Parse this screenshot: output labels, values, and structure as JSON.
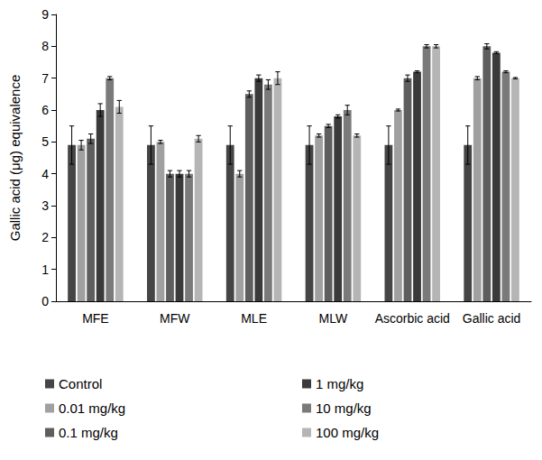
{
  "chart_data": {
    "type": "bar",
    "y_label": "Gallic acid (μg) equivalence",
    "categories": [
      "MFE",
      "MFW",
      "MLE",
      "MLW",
      "Ascorbic acid",
      "Gallic acid"
    ],
    "series": [
      {
        "name": "Control",
        "color": "#454545",
        "values": [
          4.9,
          4.9,
          4.9,
          4.9,
          4.9,
          4.9
        ],
        "errors": [
          0.6,
          0.6,
          0.6,
          0.6,
          0.6,
          0.6
        ]
      },
      {
        "name": "0.01 mg/kg",
        "color": "#a0a0a0",
        "values": [
          4.9,
          5.0,
          4.0,
          5.2,
          6.0,
          7.0
        ],
        "errors": [
          0.15,
          0.05,
          0.1,
          0.05,
          0.03,
          0.05
        ]
      },
      {
        "name": "0.1 mg/kg",
        "color": "#5e5e5e",
        "values": [
          5.1,
          4.0,
          6.5,
          5.5,
          7.0,
          8.0
        ],
        "errors": [
          0.15,
          0.1,
          0.1,
          0.05,
          0.1,
          0.08
        ]
      },
      {
        "name": "1 mg/kg",
        "color": "#3a3a3a",
        "values": [
          6.0,
          4.0,
          7.0,
          5.8,
          7.2,
          7.8
        ],
        "errors": [
          0.2,
          0.1,
          0.1,
          0.05,
          0.03,
          0.03
        ]
      },
      {
        "name": "10 mg/kg",
        "color": "#7a7a7a",
        "values": [
          7.0,
          4.0,
          6.8,
          6.0,
          8.0,
          7.2
        ],
        "errors": [
          0.05,
          0.1,
          0.15,
          0.15,
          0.05,
          0.03
        ]
      },
      {
        "name": "100 mg/kg",
        "color": "#b5b5b5",
        "values": [
          6.1,
          5.1,
          7.0,
          5.2,
          8.0,
          7.0
        ],
        "errors": [
          0.2,
          0.1,
          0.2,
          0.05,
          0.05,
          0.02
        ]
      }
    ],
    "ylim": [
      0,
      9
    ],
    "yticks": [
      0,
      1,
      2,
      3,
      4,
      5,
      6,
      7,
      8,
      9
    ],
    "grid": false,
    "legend": "bottom"
  }
}
